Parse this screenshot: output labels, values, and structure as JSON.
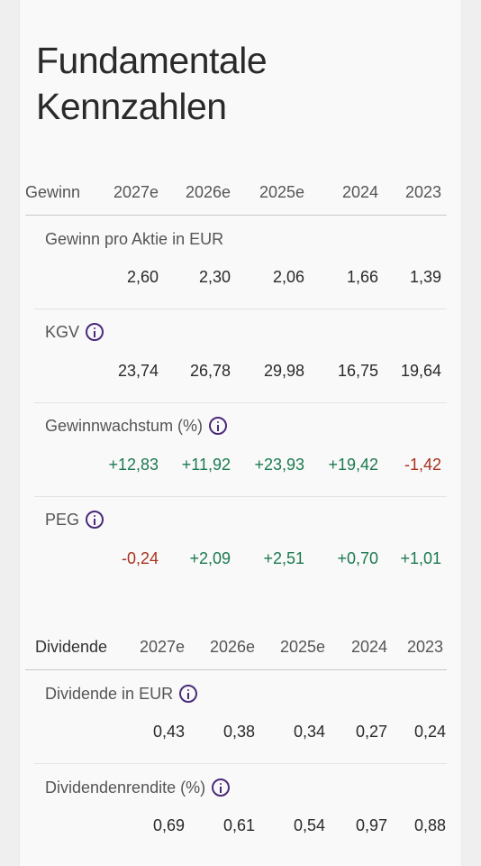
{
  "title_line1": "Fundamentale",
  "title_line2": "Kennzahlen",
  "gewinn": {
    "header": [
      "Gewinn",
      "2027e",
      "2026e",
      "2025e",
      "2024",
      "2023"
    ],
    "rows": [
      {
        "label": "Gewinn pro Aktie in EUR",
        "info": false,
        "values": [
          "2,60",
          "2,30",
          "2,06",
          "1,66",
          "1,39"
        ],
        "tones": [
          "neu",
          "neu",
          "neu",
          "neu",
          "neu"
        ]
      },
      {
        "label": "KGV",
        "info": true,
        "values": [
          "23,74",
          "26,78",
          "29,98",
          "16,75",
          "19,64"
        ],
        "tones": [
          "neu",
          "neu",
          "neu",
          "neu",
          "neu"
        ]
      },
      {
        "label": "Gewinnwachstum (%)",
        "info": true,
        "values": [
          "+12,83",
          "+11,92",
          "+23,93",
          "+19,42",
          "-1,42"
        ],
        "tones": [
          "pos",
          "pos",
          "pos",
          "pos",
          "neg"
        ]
      },
      {
        "label": "PEG",
        "info": true,
        "values": [
          "-0,24",
          "+2,09",
          "+2,51",
          "+0,70",
          "+1,01"
        ],
        "tones": [
          "neg",
          "pos",
          "pos",
          "pos",
          "pos"
        ]
      }
    ]
  },
  "dividende": {
    "header": [
      "Dividende",
      "2027e",
      "2026e",
      "2025e",
      "2024",
      "2023"
    ],
    "rows": [
      {
        "label": "Dividende in EUR",
        "info": true,
        "values": [
          "0,43",
          "0,38",
          "0,34",
          "0,27",
          "0,24"
        ],
        "tones": [
          "neu",
          "neu",
          "neu",
          "neu",
          "neu"
        ]
      },
      {
        "label": "Dividendenrendite (%)",
        "info": true,
        "values": [
          "0,69",
          "0,61",
          "0,54",
          "0,97",
          "0,88"
        ],
        "tones": [
          "neu",
          "neu",
          "neu",
          "neu",
          "neu"
        ]
      }
    ]
  },
  "colors": {
    "positive": "#1b7a4f",
    "negative": "#a8321e",
    "info_icon": "#4a2a7a"
  }
}
